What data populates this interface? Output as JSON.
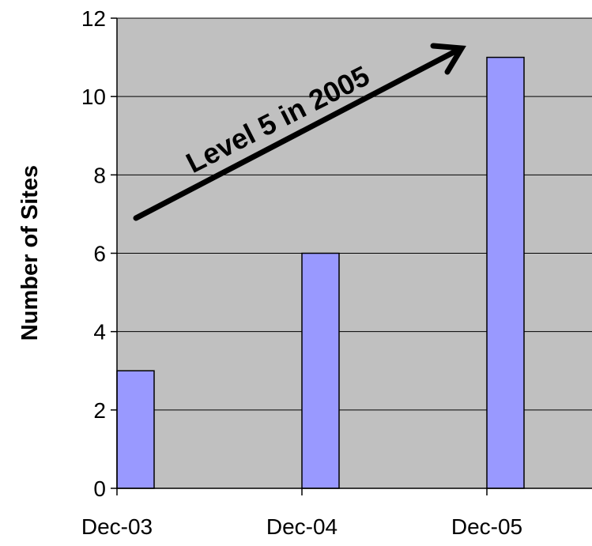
{
  "chart_data": {
    "type": "bar",
    "categories": [
      "Dec-03",
      "Dec-04",
      "Dec-05"
    ],
    "values": [
      3,
      6,
      11
    ],
    "title": "",
    "xlabel": "",
    "ylabel": "Number of Sites",
    "ylim": [
      0,
      12
    ],
    "yticks": [
      0,
      2,
      4,
      6,
      8,
      10,
      12
    ],
    "grid": true,
    "legend": "none",
    "annotation": "Level 5 in 2005",
    "colors": {
      "plot_background": "#c0c0c0",
      "bar_fill": "#9999ff",
      "bar_stroke": "#000000",
      "gridline": "#000000",
      "axis": "#000000"
    }
  }
}
